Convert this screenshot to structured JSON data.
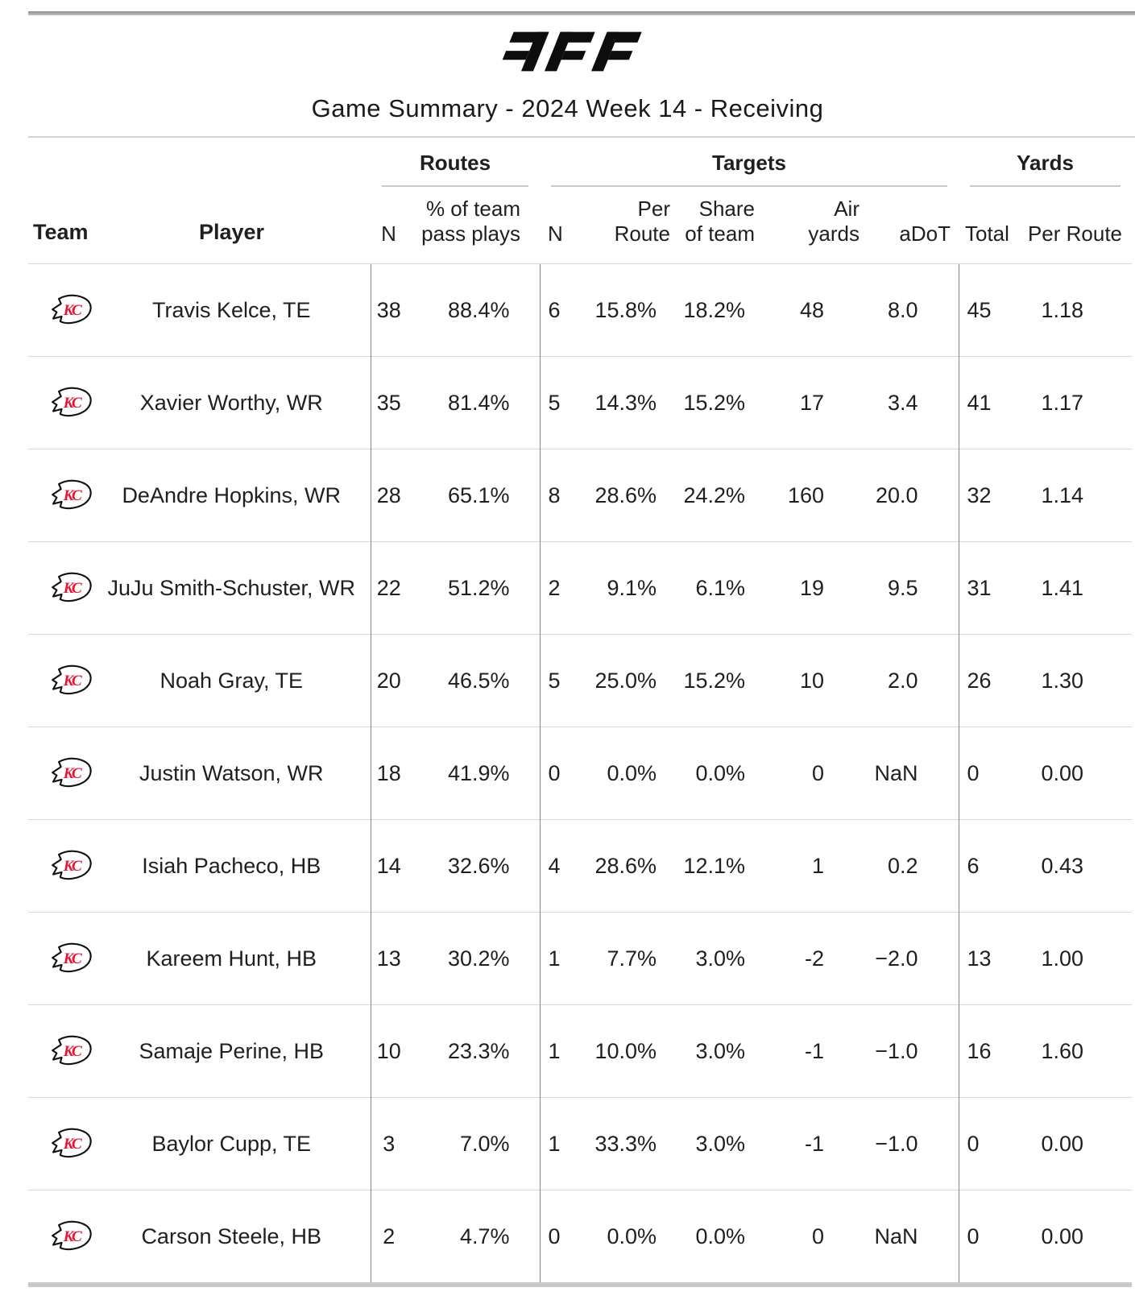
{
  "page": {
    "brand": "PFF",
    "title": "Game Summary - 2024 Week 14 - Receiving"
  },
  "colors": {
    "chiefs_red": "#E31837",
    "logo_black": "#0d0d0d",
    "rule_gray": "#c9c9c9",
    "divider_gray": "#858585",
    "text": "#1f1f1f"
  },
  "chart_data": {
    "type": "table",
    "title": "Game Summary - 2024 Week 14 - Receiving",
    "column_groups": [
      {
        "label": "Routes",
        "columns": [
          "N",
          "% of team pass plays"
        ]
      },
      {
        "label": "Targets",
        "columns": [
          "N",
          "Per Route",
          "Share of team",
          "Air yards",
          "aDoT"
        ]
      },
      {
        "label": "Yards",
        "columns": [
          "Total",
          "Per Route"
        ]
      }
    ],
    "headers": {
      "team": "Team",
      "player": "Player",
      "routes_group": "Routes",
      "targets_group": "Targets",
      "yards_group": "Yards",
      "routes_n": "N",
      "routes_pct_l1": "% of team",
      "routes_pct_l2": "pass plays",
      "targets_n": "N",
      "targets_per_route": "Per Route",
      "target_share_l1": "Share",
      "target_share_l2": "of team",
      "air_yards": "Air yards",
      "adot": "aDoT",
      "yards_total": "Total",
      "yards_per_route": "Per Route"
    },
    "team_icon": "chiefs-logo",
    "rows": [
      {
        "team": "KC",
        "player": "Travis Kelce, TE",
        "routes_n": "38",
        "routes_pct": "88.4%",
        "targets_n": "6",
        "targets_per_route": "15.8%",
        "target_share": "18.2%",
        "air_yards": "48",
        "adot": "8.0",
        "yards_total": "45",
        "yards_per_route": "1.18"
      },
      {
        "team": "KC",
        "player": "Xavier Worthy, WR",
        "routes_n": "35",
        "routes_pct": "81.4%",
        "targets_n": "5",
        "targets_per_route": "14.3%",
        "target_share": "15.2%",
        "air_yards": "17",
        "adot": "3.4",
        "yards_total": "41",
        "yards_per_route": "1.17"
      },
      {
        "team": "KC",
        "player": "DeAndre Hopkins, WR",
        "routes_n": "28",
        "routes_pct": "65.1%",
        "targets_n": "8",
        "targets_per_route": "28.6%",
        "target_share": "24.2%",
        "air_yards": "160",
        "adot": "20.0",
        "yards_total": "32",
        "yards_per_route": "1.14"
      },
      {
        "team": "KC",
        "player": "JuJu Smith-Schuster, WR",
        "routes_n": "22",
        "routes_pct": "51.2%",
        "targets_n": "2",
        "targets_per_route": "9.1%",
        "target_share": "6.1%",
        "air_yards": "19",
        "adot": "9.5",
        "yards_total": "31",
        "yards_per_route": "1.41"
      },
      {
        "team": "KC",
        "player": "Noah Gray, TE",
        "routes_n": "20",
        "routes_pct": "46.5%",
        "targets_n": "5",
        "targets_per_route": "25.0%",
        "target_share": "15.2%",
        "air_yards": "10",
        "adot": "2.0",
        "yards_total": "26",
        "yards_per_route": "1.30"
      },
      {
        "team": "KC",
        "player": "Justin Watson, WR",
        "routes_n": "18",
        "routes_pct": "41.9%",
        "targets_n": "0",
        "targets_per_route": "0.0%",
        "target_share": "0.0%",
        "air_yards": "0",
        "adot": "NaN",
        "yards_total": "0",
        "yards_per_route": "0.00"
      },
      {
        "team": "KC",
        "player": "Isiah Pacheco, HB",
        "routes_n": "14",
        "routes_pct": "32.6%",
        "targets_n": "4",
        "targets_per_route": "28.6%",
        "target_share": "12.1%",
        "air_yards": "1",
        "adot": "0.2",
        "yards_total": "6",
        "yards_per_route": "0.43"
      },
      {
        "team": "KC",
        "player": "Kareem Hunt, HB",
        "routes_n": "13",
        "routes_pct": "30.2%",
        "targets_n": "1",
        "targets_per_route": "7.7%",
        "target_share": "3.0%",
        "air_yards": "-2",
        "adot": "−2.0",
        "yards_total": "13",
        "yards_per_route": "1.00"
      },
      {
        "team": "KC",
        "player": "Samaje Perine, HB",
        "routes_n": "10",
        "routes_pct": "23.3%",
        "targets_n": "1",
        "targets_per_route": "10.0%",
        "target_share": "3.0%",
        "air_yards": "-1",
        "adot": "−1.0",
        "yards_total": "16",
        "yards_per_route": "1.60"
      },
      {
        "team": "KC",
        "player": "Baylor Cupp, TE",
        "routes_n": "3",
        "routes_pct": "7.0%",
        "targets_n": "1",
        "targets_per_route": "33.3%",
        "target_share": "3.0%",
        "air_yards": "-1",
        "adot": "−1.0",
        "yards_total": "0",
        "yards_per_route": "0.00"
      },
      {
        "team": "KC",
        "player": "Carson Steele, HB",
        "routes_n": "2",
        "routes_pct": "4.7%",
        "targets_n": "0",
        "targets_per_route": "0.0%",
        "target_share": "0.0%",
        "air_yards": "0",
        "adot": "NaN",
        "yards_total": "0",
        "yards_per_route": "0.00"
      }
    ]
  }
}
